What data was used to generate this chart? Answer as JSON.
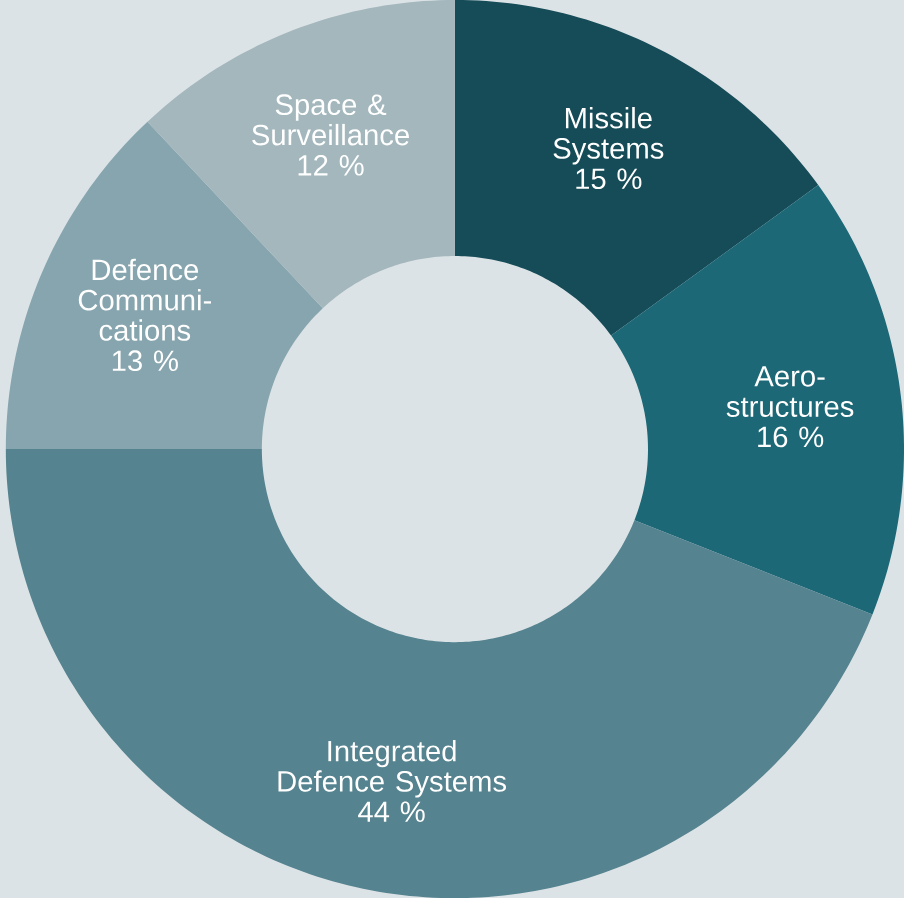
{
  "chart_data": {
    "type": "donut",
    "categories": [
      "Missile Systems",
      "Aero-structures",
      "Integrated Defence Systems",
      "Defence Communi-cations",
      "Space & Surveillance"
    ],
    "values": [
      15,
      16,
      44,
      13,
      12
    ],
    "value_labels": [
      "15 %",
      "16 %",
      "44 %",
      "13 %",
      "12 %"
    ],
    "colors": [
      "#154c58",
      "#1d6876",
      "#55838f",
      "#87a5ae",
      "#a3b7bd"
    ]
  }
}
